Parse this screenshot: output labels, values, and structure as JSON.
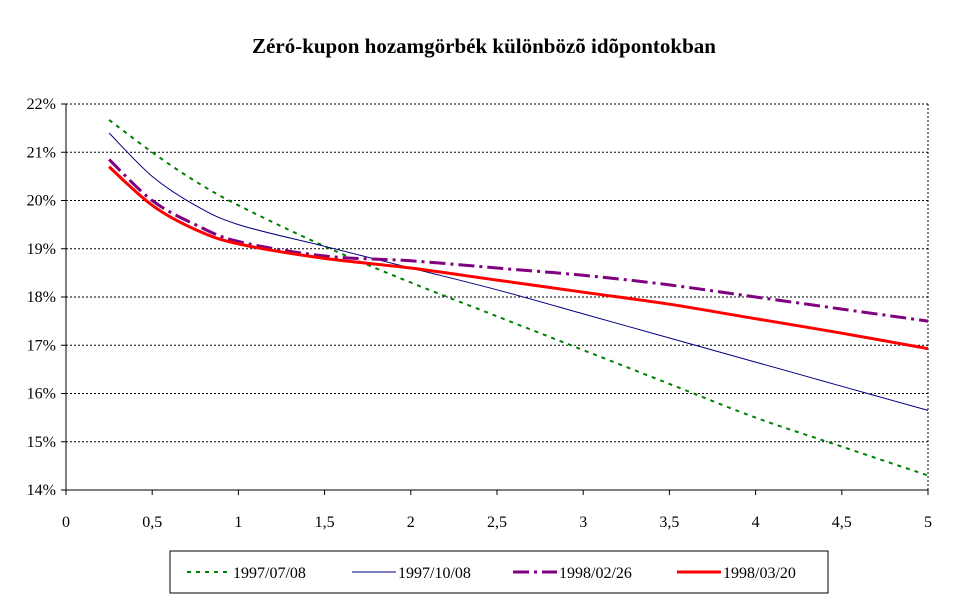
{
  "chart_data": {
    "type": "line",
    "title": "Zéró-kupon hozamgörbék különbözõ idõpontokban",
    "xlabel": "",
    "ylabel": "",
    "xlim": [
      0,
      5
    ],
    "ylim": [
      14,
      22
    ],
    "x_ticks": [
      "0",
      "0,5",
      "1",
      "1,5",
      "2",
      "2,5",
      "3",
      "3,5",
      "4",
      "4,5",
      "5"
    ],
    "y_ticks": [
      "14%",
      "15%",
      "16%",
      "17%",
      "18%",
      "19%",
      "20%",
      "21%",
      "22%"
    ],
    "grid": "horizontal dotted",
    "legend_position": "bottom",
    "series": [
      {
        "name": "1997/07/08",
        "color": "#008000",
        "style": "dotted",
        "x": [
          0.25,
          0.5,
          0.75,
          1,
          1.5,
          2,
          2.5,
          3,
          3.5,
          4,
          4.5,
          5
        ],
        "values": [
          21.67,
          21.0,
          20.4,
          19.9,
          19.05,
          18.3,
          17.6,
          16.9,
          16.2,
          15.5,
          14.9,
          14.3
        ]
      },
      {
        "name": "1997/10/08",
        "color": "#000080",
        "style": "solid-thin",
        "x": [
          0.25,
          0.5,
          0.75,
          1,
          1.5,
          2,
          2.5,
          3,
          3.5,
          4,
          4.5,
          5
        ],
        "values": [
          21.4,
          20.5,
          19.9,
          19.5,
          19.05,
          18.6,
          18.15,
          17.65,
          17.15,
          16.65,
          16.15,
          15.65
        ]
      },
      {
        "name": "1998/02/26",
        "color": "#800080",
        "style": "dash-dot",
        "x": [
          0.25,
          0.5,
          0.75,
          1,
          1.5,
          2,
          2.5,
          3,
          3.5,
          4,
          4.5,
          5
        ],
        "values": [
          20.85,
          20.0,
          19.5,
          19.15,
          18.85,
          18.75,
          18.6,
          18.45,
          18.25,
          18.0,
          17.75,
          17.5
        ]
      },
      {
        "name": "1998/03/20",
        "color": "#ff0000",
        "style": "solid-thick",
        "x": [
          0.25,
          0.5,
          0.75,
          1,
          1.5,
          2,
          2.5,
          3,
          3.5,
          4,
          4.5,
          5
        ],
        "values": [
          20.7,
          19.9,
          19.4,
          19.1,
          18.8,
          18.6,
          18.35,
          18.1,
          17.85,
          17.55,
          17.25,
          16.93
        ]
      }
    ]
  }
}
